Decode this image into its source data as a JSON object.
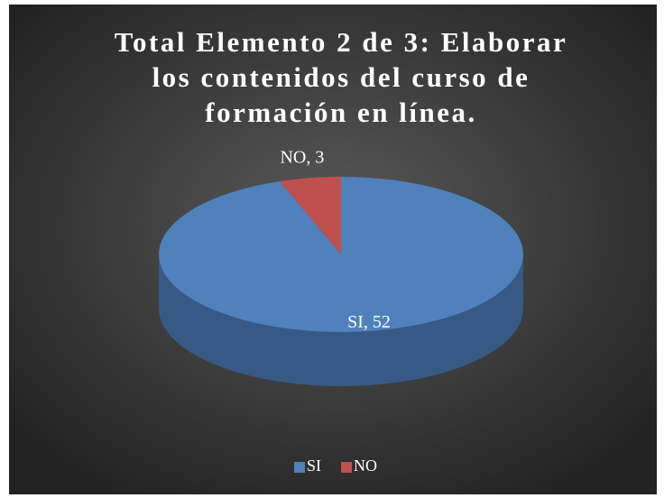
{
  "chart_data": {
    "type": "pie3d",
    "title": "Total Elemento 2 de 3: Elaborar los contenidos del curso de formación en línea.",
    "categories": [
      "SI",
      "NO"
    ],
    "values": [
      52,
      3
    ],
    "value_labels": [
      "SI, 52",
      "NO, 3"
    ],
    "colors": [
      "#4f81bd",
      "#c0504d"
    ],
    "legend": "bottom"
  }
}
